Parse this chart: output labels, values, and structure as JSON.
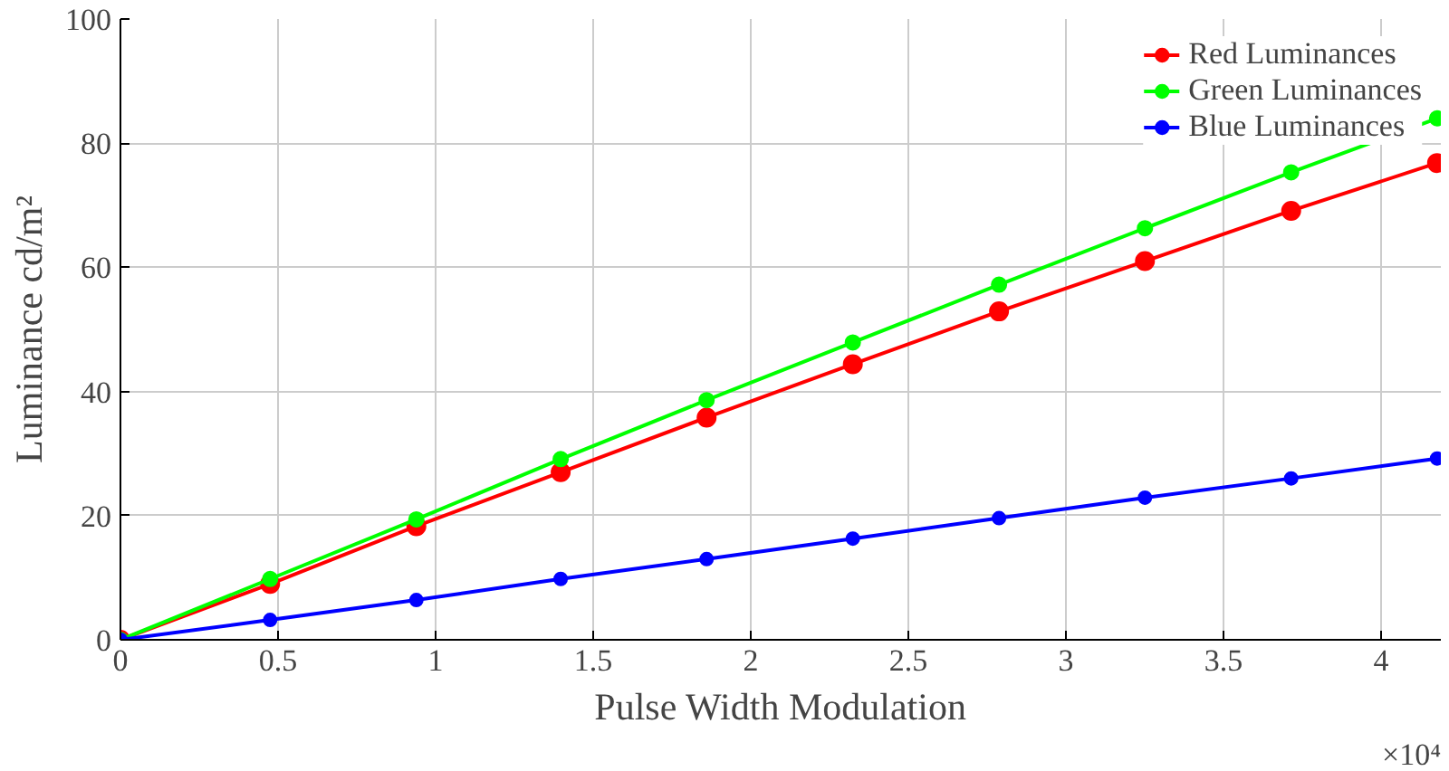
{
  "chart_data": {
    "type": "line",
    "xlabel": "Pulse Width Modulation",
    "ylabel": "Luminance cd/m²",
    "x": [
      0,
      0.475,
      0.939,
      1.397,
      1.86,
      2.324,
      2.788,
      3.251,
      3.715,
      4.178
    ],
    "series": [
      {
        "name": "Red Luminances",
        "color": "#ff0000",
        "values": [
          0,
          9,
          18.3,
          27,
          35.8,
          44.4,
          52.9,
          61,
          69.1,
          76.8
        ]
      },
      {
        "name": "Green Luminances",
        "color": "#00ff00",
        "values": [
          0,
          9.8,
          19.4,
          29.1,
          38.6,
          47.9,
          57.2,
          66.3,
          75.3,
          84
        ]
      },
      {
        "name": "Blue Luminances",
        "color": "#0000ff",
        "values": [
          0,
          3.2,
          6.4,
          9.8,
          13,
          16.3,
          19.6,
          22.9,
          26,
          29.2
        ]
      }
    ],
    "xlim": [
      0,
      4.19
    ],
    "ylim": [
      0,
      100
    ],
    "xticks": [
      0,
      0.5,
      1,
      1.5,
      2,
      2.5,
      3,
      3.5,
      4
    ],
    "yticks": [
      0,
      20,
      40,
      60,
      80,
      100
    ],
    "annotations": [
      "×10⁴"
    ],
    "grid": true,
    "legend": "top right",
    "marker": "circle",
    "line_style": "solid"
  }
}
